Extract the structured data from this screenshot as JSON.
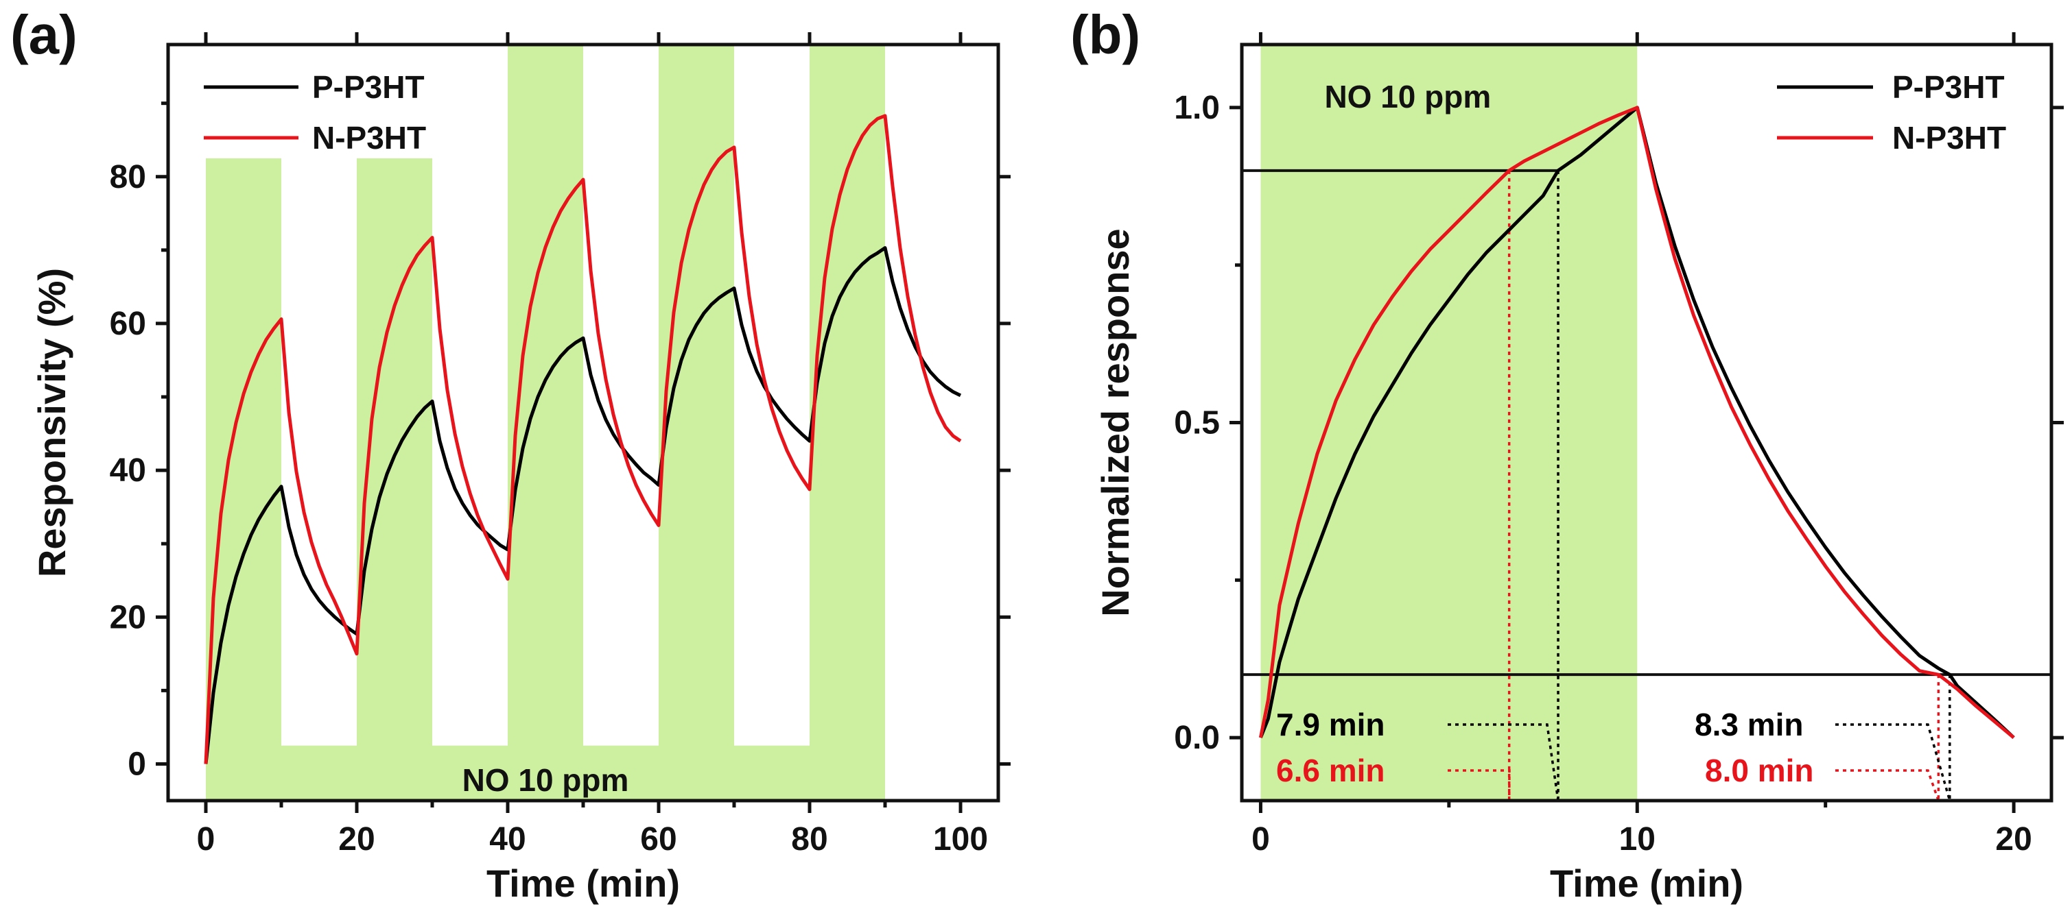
{
  "colors": {
    "exposure": "#cdf0a0",
    "p_p3ht": "#000000",
    "n_p3ht": "#e8141c"
  },
  "chart_data": [
    {
      "id": "a",
      "type": "line",
      "panel_label": "(a)",
      "title": "",
      "xlabel": "Time (min)",
      "ylabel": "Responsivity (%)",
      "xlim": [
        -5,
        105
      ],
      "ylim": [
        -5,
        98
      ],
      "xticks": [
        0,
        20,
        40,
        60,
        80,
        100
      ],
      "yticks": [
        0,
        20,
        40,
        60,
        80
      ],
      "grid": false,
      "legend": {
        "position": "top-left",
        "entries": [
          "P-P3HT",
          "N-P3HT"
        ]
      },
      "exposure_label": "NO 10 ppm",
      "exposure_windows": [
        [
          0,
          10
        ],
        [
          20,
          30
        ],
        [
          40,
          50
        ],
        [
          60,
          70
        ],
        [
          80,
          90
        ]
      ],
      "exposure_band": [
        2.5,
        82.5
      ],
      "series": [
        {
          "name": "P-P3HT",
          "color": "#000000",
          "x": [
            0,
            1,
            2,
            3,
            4,
            5,
            6,
            7,
            8,
            9,
            10,
            11,
            12,
            13,
            14,
            15,
            16,
            17,
            18,
            19,
            20,
            21,
            22,
            23,
            24,
            25,
            26,
            27,
            28,
            29,
            30,
            31,
            32,
            33,
            34,
            35,
            36,
            37,
            38,
            39,
            40,
            41,
            42,
            43,
            44,
            45,
            46,
            47,
            48,
            49,
            50,
            51,
            52,
            53,
            54,
            55,
            56,
            57,
            58,
            59,
            60,
            61,
            62,
            63,
            64,
            65,
            66,
            67,
            68,
            69,
            70,
            71,
            72,
            73,
            74,
            75,
            76,
            77,
            78,
            79,
            80,
            81,
            82,
            83,
            84,
            85,
            86,
            87,
            88,
            89,
            90,
            91,
            92,
            93,
            94,
            95,
            96,
            97,
            98,
            99,
            100
          ],
          "y": [
            0.0,
            9.7,
            16.5,
            21.6,
            25.5,
            28.6,
            31.2,
            33.3,
            35.0,
            36.5,
            37.8,
            32.3,
            28.5,
            25.8,
            23.8,
            22.3,
            21.1,
            20.1,
            19.2,
            18.4,
            17.7,
            26.3,
            32.0,
            36.3,
            39.5,
            42.0,
            44.1,
            45.8,
            47.3,
            48.5,
            49.4,
            44.0,
            40.3,
            37.5,
            35.5,
            33.9,
            32.6,
            31.6,
            30.7,
            29.8,
            29.2,
            37.3,
            43.0,
            47.0,
            50.0,
            52.3,
            54.1,
            55.5,
            56.6,
            57.4,
            58.0,
            53.0,
            49.5,
            46.9,
            44.9,
            43.3,
            42.0,
            40.8,
            39.7,
            38.9,
            38.0,
            45.8,
            51.2,
            55.0,
            57.8,
            59.8,
            61.4,
            62.6,
            63.5,
            64.2,
            64.8,
            59.8,
            56.2,
            53.5,
            51.4,
            49.7,
            48.3,
            47.0,
            45.9,
            44.9,
            44.0,
            51.9,
            57.3,
            61.0,
            63.6,
            65.5,
            67.0,
            68.1,
            69.0,
            69.6,
            70.3,
            65.7,
            62.1,
            59.2,
            56.8,
            54.9,
            53.4,
            52.3,
            51.4,
            50.7,
            50.2
          ]
        },
        {
          "name": "N-P3HT",
          "color": "#e8141c",
          "x": [
            0,
            1,
            2,
            3,
            4,
            5,
            6,
            7,
            8,
            9,
            10,
            11,
            12,
            13,
            14,
            15,
            16,
            17,
            18,
            19,
            20,
            21,
            22,
            23,
            24,
            25,
            26,
            27,
            28,
            29,
            30,
            31,
            32,
            33,
            34,
            35,
            36,
            37,
            38,
            39,
            40,
            41,
            42,
            43,
            44,
            45,
            46,
            47,
            48,
            49,
            50,
            51,
            52,
            53,
            54,
            55,
            56,
            57,
            58,
            59,
            60,
            61,
            62,
            63,
            64,
            65,
            66,
            67,
            68,
            69,
            70,
            71,
            72,
            73,
            74,
            75,
            76,
            77,
            78,
            79,
            80,
            81,
            82,
            83,
            84,
            85,
            86,
            87,
            88,
            89,
            90,
            91,
            92,
            93,
            94,
            95,
            96,
            97,
            98,
            99,
            100
          ],
          "y": [
            0.0,
            22.6,
            34.1,
            41.4,
            46.5,
            50.4,
            53.4,
            55.8,
            57.8,
            59.3,
            60.6,
            47.9,
            39.8,
            34.3,
            30.2,
            27.0,
            24.4,
            22.3,
            20.0,
            17.5,
            15.0,
            35.5,
            47.0,
            54.0,
            58.8,
            62.4,
            65.2,
            67.5,
            69.3,
            70.6,
            71.7,
            59.3,
            50.9,
            45.0,
            40.5,
            36.9,
            33.9,
            31.4,
            29.3,
            27.2,
            25.2,
            44.7,
            55.6,
            62.3,
            66.9,
            70.4,
            73.1,
            75.3,
            77.0,
            78.4,
            79.6,
            67.2,
            58.6,
            52.4,
            47.6,
            43.8,
            40.6,
            38.0,
            35.9,
            34.1,
            32.5,
            50.8,
            61.5,
            68.2,
            72.8,
            76.2,
            78.9,
            80.9,
            82.4,
            83.4,
            84.0,
            72.4,
            63.7,
            57.2,
            52.3,
            48.4,
            45.3,
            42.7,
            40.6,
            38.9,
            37.4,
            55.6,
            66.2,
            72.9,
            77.5,
            81.0,
            83.6,
            85.6,
            87.0,
            87.9,
            88.3,
            78.7,
            70.3,
            63.7,
            58.4,
            54.1,
            50.6,
            47.9,
            45.9,
            44.7,
            44.0
          ]
        }
      ]
    },
    {
      "id": "b",
      "type": "line",
      "panel_label": "(b)",
      "title": "",
      "xlabel": "Time (min)",
      "ylabel": "Normalized response",
      "xlim": [
        -0.5,
        21
      ],
      "ylim": [
        -0.1,
        1.1
      ],
      "xticks": [
        0,
        10,
        20
      ],
      "yticks": [
        0.0,
        0.5,
        1.0
      ],
      "grid": false,
      "legend": {
        "position": "top-right",
        "entries": [
          "P-P3HT",
          "N-P3HT"
        ]
      },
      "exposure_label": "NO 10 ppm",
      "exposure_windows": [
        [
          0,
          10
        ]
      ],
      "reference_levels": [
        0.9,
        0.1
      ],
      "annotations": [
        {
          "text": "7.9 min",
          "series": "P-P3HT",
          "x": 7.9,
          "level": 0.9
        },
        {
          "text": "6.6 min",
          "series": "N-P3HT",
          "x": 6.6,
          "level": 0.9
        },
        {
          "text": "8.3 min",
          "series": "P-P3HT",
          "x": 18.3,
          "level": 0.1
        },
        {
          "text": "8.0 min",
          "series": "N-P3HT",
          "x": 18.0,
          "level": 0.1
        }
      ],
      "series": [
        {
          "name": "P-P3HT",
          "color": "#000000",
          "x": [
            0,
            0.2,
            0.5,
            1,
            1.5,
            2,
            2.5,
            3,
            3.5,
            4,
            4.5,
            5,
            5.5,
            6,
            6.5,
            7,
            7.5,
            7.9,
            8.5,
            9,
            9.5,
            10,
            10.5,
            11,
            11.5,
            12,
            12.5,
            13,
            13.5,
            14,
            14.5,
            15,
            15.5,
            16,
            16.5,
            17,
            17.5,
            18,
            18.3,
            18.5,
            19,
            19.5,
            20
          ],
          "y": [
            0.0,
            0.03,
            0.12,
            0.22,
            0.3,
            0.38,
            0.45,
            0.51,
            0.56,
            0.61,
            0.655,
            0.695,
            0.735,
            0.77,
            0.8,
            0.83,
            0.86,
            0.9,
            0.925,
            0.95,
            0.975,
            1.0,
            0.88,
            0.78,
            0.695,
            0.62,
            0.555,
            0.495,
            0.44,
            0.39,
            0.345,
            0.302,
            0.262,
            0.226,
            0.192,
            0.16,
            0.13,
            0.11,
            0.1,
            0.082,
            0.055,
            0.028,
            0.0
          ]
        },
        {
          "name": "N-P3HT",
          "color": "#e8141c",
          "x": [
            0,
            0.2,
            0.5,
            1,
            1.5,
            2,
            2.5,
            3,
            3.5,
            4,
            4.5,
            5,
            5.5,
            6,
            6.6,
            7,
            7.5,
            8,
            8.5,
            9,
            9.5,
            10,
            10.5,
            11,
            11.5,
            12,
            12.5,
            13,
            13.5,
            14,
            14.5,
            15,
            15.5,
            16,
            16.5,
            17,
            17.5,
            18,
            18.5,
            19,
            19.5,
            20
          ],
          "y": [
            0.0,
            0.06,
            0.21,
            0.34,
            0.45,
            0.535,
            0.6,
            0.655,
            0.7,
            0.74,
            0.775,
            0.805,
            0.835,
            0.865,
            0.9,
            0.915,
            0.93,
            0.945,
            0.96,
            0.975,
            0.988,
            1.0,
            0.87,
            0.76,
            0.67,
            0.595,
            0.525,
            0.465,
            0.41,
            0.36,
            0.315,
            0.272,
            0.232,
            0.196,
            0.162,
            0.132,
            0.106,
            0.1,
            0.077,
            0.05,
            0.025,
            0.0
          ]
        }
      ]
    }
  ]
}
